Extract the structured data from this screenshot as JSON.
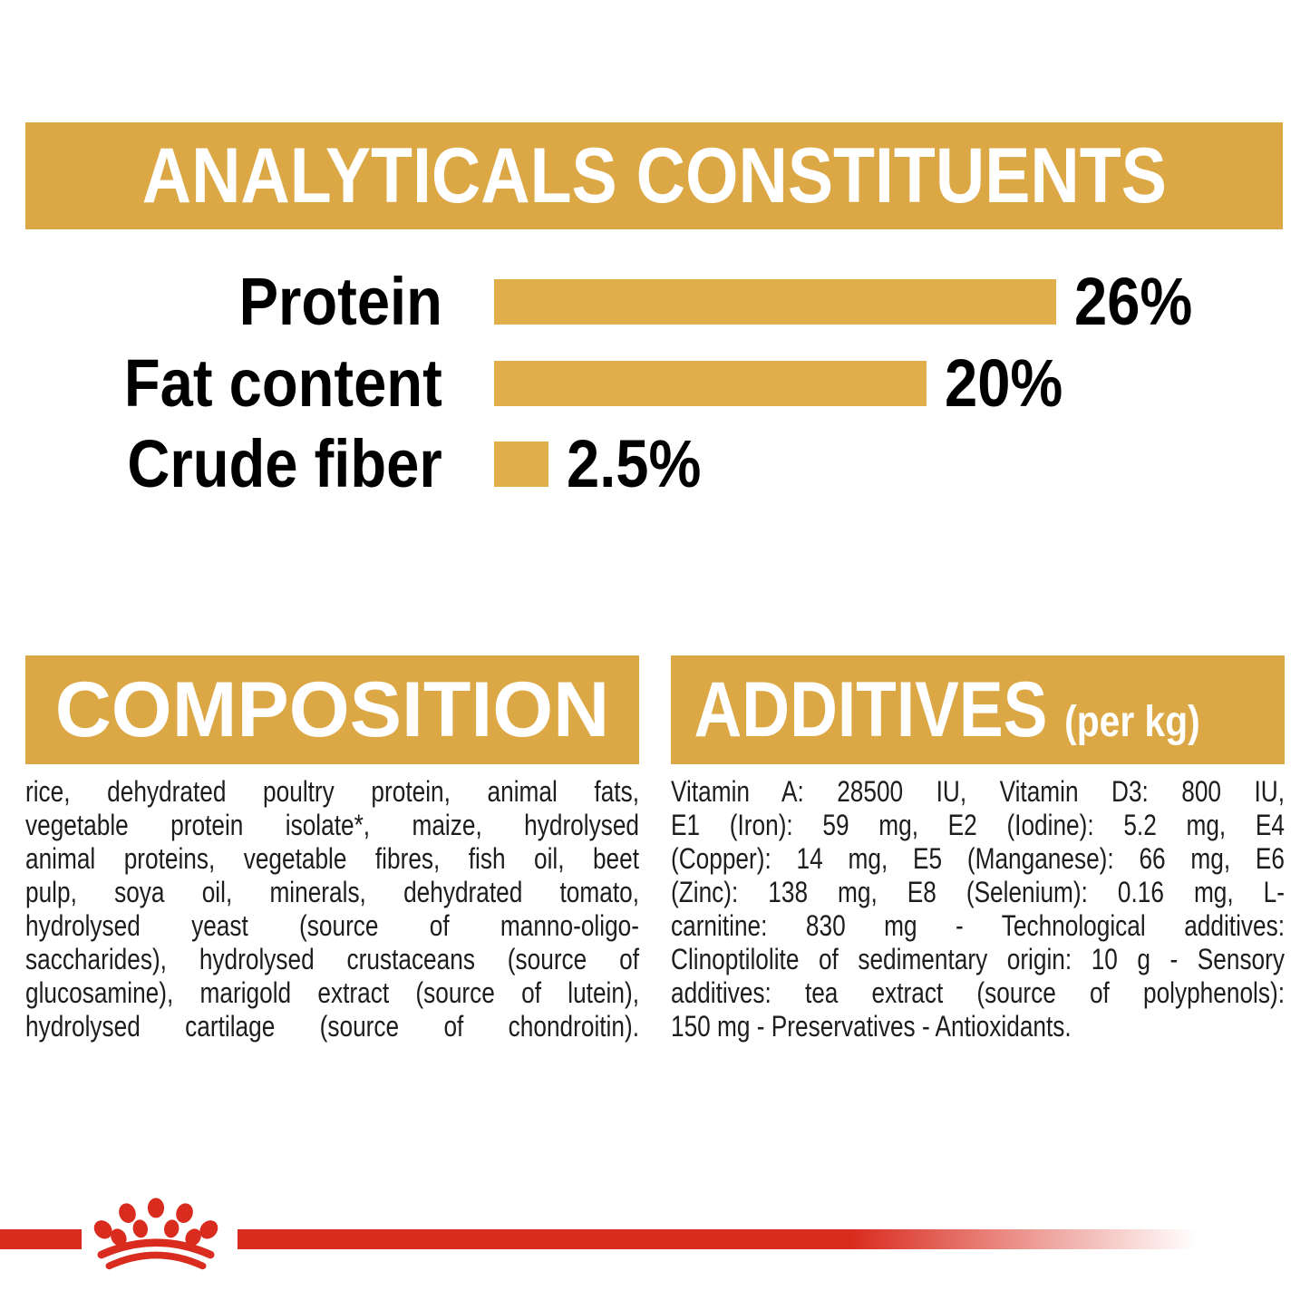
{
  "colors": {
    "gold_band": "#DCA845",
    "gold_bar": "#E0AE4A",
    "brand_red": "#D92B1E",
    "text_dark": "#1D1D1B",
    "title_white": "#FFFFFF"
  },
  "header": {
    "title": "ANALYTICALS CONSTITUENTS"
  },
  "chart_data": {
    "type": "bar",
    "orientation": "horizontal",
    "categories": [
      "Protein",
      "Fat content",
      "Crude fiber"
    ],
    "values": [
      26,
      20,
      2.5
    ],
    "value_labels": [
      "26%",
      "20%",
      "2.5%"
    ],
    "xlim": [
      0,
      27
    ],
    "bar_color": "#E0AE4A",
    "grid": false,
    "legend": false
  },
  "composition": {
    "title": "COMPOSITION",
    "lines": [
      "rice, dehydrated poultry protein, animal fats,",
      "vegetable protein isolate*, maize, hydrolysed",
      "animal proteins, vegetable fibres, fish oil, beet",
      "pulp, soya oil, minerals, dehydrated tomato,",
      "hydrolysed yeast (source of manno-oligo-",
      "saccharides), hydrolysed crustaceans (source of",
      "glucosamine), marigold extract (source of lutein),",
      "hydrolysed cartilage (source of chondroitin)."
    ]
  },
  "additives": {
    "title": "ADDITIVES",
    "title_suffix": "(per kg)",
    "lines": [
      "Vitamin A: 28500 IU, Vitamin D3: 800 IU,",
      "E1 (Iron): 59 mg, E2 (Iodine): 5.2 mg, E4",
      "(Copper): 14 mg, E5 (Manganese): 66 mg, E6",
      "(Zinc): 138 mg, E8 (Selenium): 0.16 mg, L-",
      "carnitine: 830 mg - Technological additives:",
      "Clinoptilolite of sedimentary origin: 10 g - Sensory",
      "additives: tea extract (source of polyphenols):",
      "150 mg - Preservatives - Antioxidants."
    ]
  },
  "footer": {
    "logo_icon": "royal-canin-crown-icon"
  }
}
